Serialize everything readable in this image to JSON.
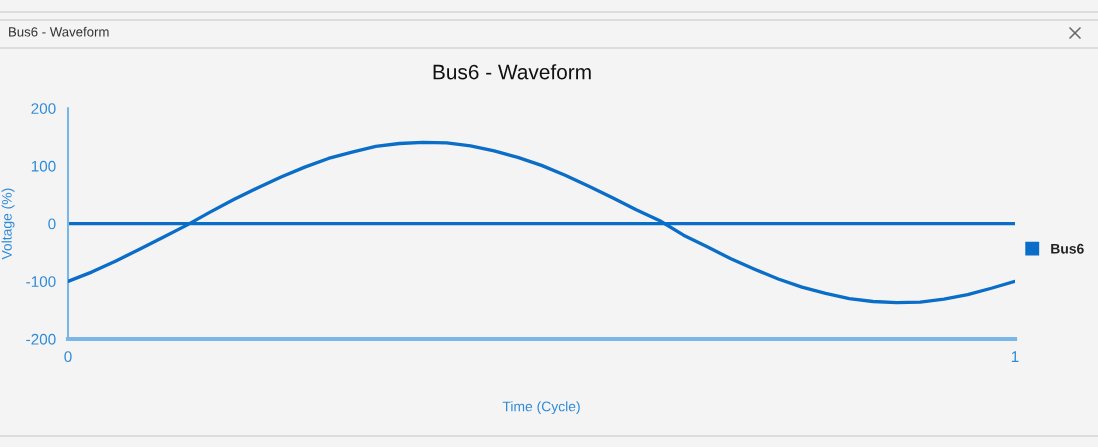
{
  "chart_data": {
    "type": "line",
    "title": "Bus6 - Waveform",
    "xlabel": "Time (Cycle)",
    "ylabel": "Voltage (%)",
    "annotations": [
      "Bus6 - Waveform"
    ],
    "x": [
      0,
      0.025,
      0.05,
      0.075,
      0.1,
      0.125,
      0.15,
      0.175,
      0.2,
      0.225,
      0.25,
      0.275,
      0.3,
      0.325,
      0.35,
      0.375,
      0.4,
      0.425,
      0.45,
      0.475,
      0.5,
      0.525,
      0.55,
      0.575,
      0.6,
      0.625,
      0.65,
      0.675,
      0.7,
      0.725,
      0.75,
      0.775,
      0.8,
      0.825,
      0.85,
      0.875,
      0.9,
      0.925,
      0.95,
      0.975,
      1
    ],
    "series": [
      {
        "name": "Bus6",
        "color": "#0a6ec8",
        "values": [
          -100,
          -84,
          -65,
          -45,
          -24,
          -3,
          20,
          42,
          62,
          81,
          98,
          113,
          124,
          134,
          139,
          141,
          140,
          135,
          126,
          115,
          101,
          84,
          65,
          45,
          24,
          5,
          -20,
          -40,
          -61,
          -79,
          -96,
          -110,
          -121,
          -130,
          -135,
          -137,
          -136,
          -131,
          -123,
          -112,
          -100
        ]
      }
    ],
    "xlim": [
      0,
      1
    ],
    "xticks": [
      0,
      1
    ],
    "ylim": [
      -200,
      200
    ],
    "yticks": [
      -200,
      -100,
      0,
      100,
      200
    ],
    "ref_lines": [
      {
        "axis": "y",
        "value": 0,
        "color": "#0a6ec8"
      }
    ],
    "legend": "right",
    "marker": "none",
    "line_style": "solid"
  }
}
